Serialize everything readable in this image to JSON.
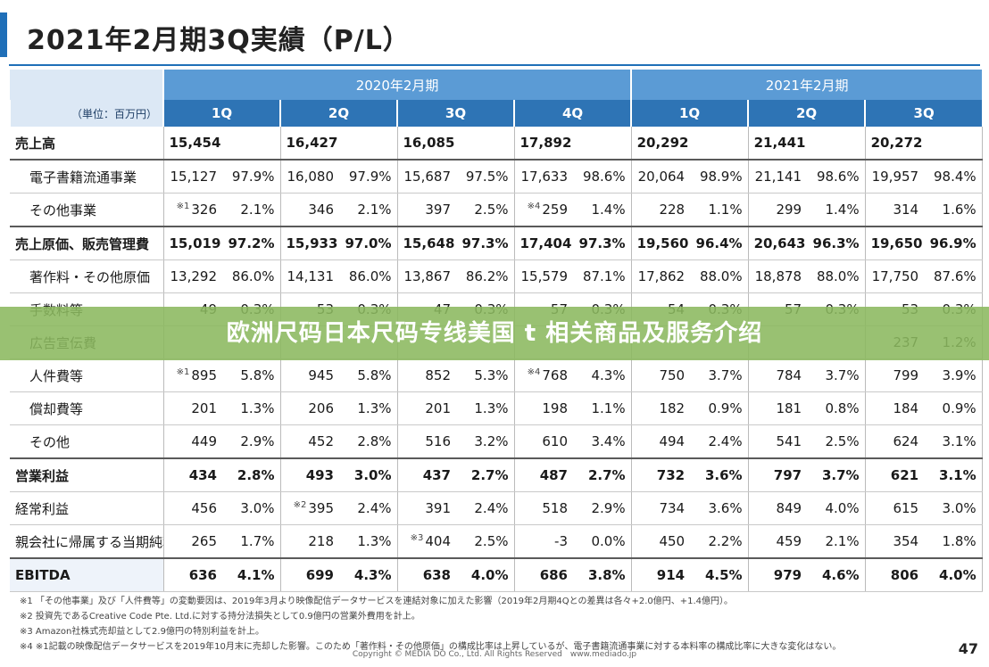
{
  "title": "2021年2月期3Q実績（P/L）",
  "header": {
    "unit": "（単位：百万円）",
    "periods": [
      "2020年2月期",
      "2021年2月期"
    ],
    "quarters": [
      "1Q",
      "2Q",
      "3Q",
      "4Q",
      "1Q",
      "2Q",
      "3Q"
    ]
  },
  "rows": [
    {
      "label": "売上高",
      "bold": true,
      "indent": false,
      "cells": [
        {
          "v": "15,454",
          "p": "",
          "n": ""
        },
        {
          "v": "16,427",
          "p": "",
          "n": ""
        },
        {
          "v": "16,085",
          "p": "",
          "n": ""
        },
        {
          "v": "17,892",
          "p": "",
          "n": ""
        },
        {
          "v": "20,292",
          "p": "",
          "n": ""
        },
        {
          "v": "21,441",
          "p": "",
          "n": ""
        },
        {
          "v": "20,272",
          "p": "",
          "n": ""
        }
      ]
    },
    {
      "label": "電子書籍流通事業",
      "bold": false,
      "indent": true,
      "cells": [
        {
          "v": "15,127",
          "p": "97.9%",
          "n": ""
        },
        {
          "v": "16,080",
          "p": "97.9%",
          "n": ""
        },
        {
          "v": "15,687",
          "p": "97.5%",
          "n": ""
        },
        {
          "v": "17,633",
          "p": "98.6%",
          "n": ""
        },
        {
          "v": "20,064",
          "p": "98.9%",
          "n": ""
        },
        {
          "v": "21,141",
          "p": "98.6%",
          "n": ""
        },
        {
          "v": "19,957",
          "p": "98.4%",
          "n": ""
        }
      ]
    },
    {
      "label": "その他事業",
      "bold": false,
      "indent": true,
      "cells": [
        {
          "v": "326",
          "p": "2.1%",
          "n": "※1"
        },
        {
          "v": "346",
          "p": "2.1%",
          "n": ""
        },
        {
          "v": "397",
          "p": "2.5%",
          "n": ""
        },
        {
          "v": "259",
          "p": "1.4%",
          "n": "※4"
        },
        {
          "v": "228",
          "p": "1.1%",
          "n": ""
        },
        {
          "v": "299",
          "p": "1.4%",
          "n": ""
        },
        {
          "v": "314",
          "p": "1.6%",
          "n": ""
        }
      ]
    },
    {
      "label": "売上原価、販売管理費",
      "bold": true,
      "indent": false,
      "cells": [
        {
          "v": "15,019",
          "p": "97.2%",
          "n": ""
        },
        {
          "v": "15,933",
          "p": "97.0%",
          "n": ""
        },
        {
          "v": "15,648",
          "p": "97.3%",
          "n": ""
        },
        {
          "v": "17,404",
          "p": "97.3%",
          "n": ""
        },
        {
          "v": "19,560",
          "p": "96.4%",
          "n": ""
        },
        {
          "v": "20,643",
          "p": "96.3%",
          "n": ""
        },
        {
          "v": "19,650",
          "p": "96.9%",
          "n": ""
        }
      ]
    },
    {
      "label": "著作料・その他原価",
      "bold": false,
      "indent": true,
      "cells": [
        {
          "v": "13,292",
          "p": "86.0%",
          "n": ""
        },
        {
          "v": "14,131",
          "p": "86.0%",
          "n": ""
        },
        {
          "v": "13,867",
          "p": "86.2%",
          "n": ""
        },
        {
          "v": "15,579",
          "p": "87.1%",
          "n": ""
        },
        {
          "v": "17,862",
          "p": "88.0%",
          "n": ""
        },
        {
          "v": "18,878",
          "p": "88.0%",
          "n": ""
        },
        {
          "v": "17,750",
          "p": "87.6%",
          "n": ""
        }
      ]
    },
    {
      "label": "手数料等",
      "bold": false,
      "indent": true,
      "cells": [
        {
          "v": "49",
          "p": "0.3%",
          "n": ""
        },
        {
          "v": "53",
          "p": "0.3%",
          "n": ""
        },
        {
          "v": "47",
          "p": "0.3%",
          "n": ""
        },
        {
          "v": "57",
          "p": "0.3%",
          "n": ""
        },
        {
          "v": "54",
          "p": "0.3%",
          "n": ""
        },
        {
          "v": "57",
          "p": "0.3%",
          "n": ""
        },
        {
          "v": "53",
          "p": "0.3%",
          "n": ""
        }
      ]
    },
    {
      "label": "広告宣伝費",
      "bold": false,
      "indent": true,
      "cells": [
        {
          "v": "",
          "p": "",
          "n": ""
        },
        {
          "v": "",
          "p": "",
          "n": ""
        },
        {
          "v": "",
          "p": "",
          "n": ""
        },
        {
          "v": "",
          "p": "",
          "n": ""
        },
        {
          "v": "",
          "p": "",
          "n": ""
        },
        {
          "v": "",
          "p": "",
          "n": ""
        },
        {
          "v": "237",
          "p": "1.2%",
          "n": ""
        }
      ]
    },
    {
      "label": "人件費等",
      "bold": false,
      "indent": true,
      "cells": [
        {
          "v": "895",
          "p": "5.8%",
          "n": "※1"
        },
        {
          "v": "945",
          "p": "5.8%",
          "n": ""
        },
        {
          "v": "852",
          "p": "5.3%",
          "n": ""
        },
        {
          "v": "768",
          "p": "4.3%",
          "n": "※4"
        },
        {
          "v": "750",
          "p": "3.7%",
          "n": ""
        },
        {
          "v": "784",
          "p": "3.7%",
          "n": ""
        },
        {
          "v": "799",
          "p": "3.9%",
          "n": ""
        }
      ]
    },
    {
      "label": "償却費等",
      "bold": false,
      "indent": true,
      "cells": [
        {
          "v": "201",
          "p": "1.3%",
          "n": ""
        },
        {
          "v": "206",
          "p": "1.3%",
          "n": ""
        },
        {
          "v": "201",
          "p": "1.3%",
          "n": ""
        },
        {
          "v": "198",
          "p": "1.1%",
          "n": ""
        },
        {
          "v": "182",
          "p": "0.9%",
          "n": ""
        },
        {
          "v": "181",
          "p": "0.8%",
          "n": ""
        },
        {
          "v": "184",
          "p": "0.9%",
          "n": ""
        }
      ]
    },
    {
      "label": "その他",
      "bold": false,
      "indent": true,
      "cells": [
        {
          "v": "449",
          "p": "2.9%",
          "n": ""
        },
        {
          "v": "452",
          "p": "2.8%",
          "n": ""
        },
        {
          "v": "516",
          "p": "3.2%",
          "n": ""
        },
        {
          "v": "610",
          "p": "3.4%",
          "n": ""
        },
        {
          "v": "494",
          "p": "2.4%",
          "n": ""
        },
        {
          "v": "541",
          "p": "2.5%",
          "n": ""
        },
        {
          "v": "624",
          "p": "3.1%",
          "n": ""
        }
      ]
    },
    {
      "label": "営業利益",
      "bold": true,
      "indent": false,
      "cells": [
        {
          "v": "434",
          "p": "2.8%",
          "n": ""
        },
        {
          "v": "493",
          "p": "3.0%",
          "n": ""
        },
        {
          "v": "437",
          "p": "2.7%",
          "n": ""
        },
        {
          "v": "487",
          "p": "2.7%",
          "n": ""
        },
        {
          "v": "732",
          "p": "3.6%",
          "n": ""
        },
        {
          "v": "797",
          "p": "3.7%",
          "n": ""
        },
        {
          "v": "621",
          "p": "3.1%",
          "n": ""
        }
      ]
    },
    {
      "label": "経常利益",
      "bold": false,
      "indent": false,
      "cells": [
        {
          "v": "456",
          "p": "3.0%",
          "n": ""
        },
        {
          "v": "395",
          "p": "2.4%",
          "n": "※2"
        },
        {
          "v": "391",
          "p": "2.4%",
          "n": ""
        },
        {
          "v": "518",
          "p": "2.9%",
          "n": ""
        },
        {
          "v": "734",
          "p": "3.6%",
          "n": ""
        },
        {
          "v": "849",
          "p": "4.0%",
          "n": ""
        },
        {
          "v": "615",
          "p": "3.0%",
          "n": ""
        }
      ]
    },
    {
      "label": "親会社に帰属する当期純利益",
      "bold": false,
      "indent": false,
      "cells": [
        {
          "v": "265",
          "p": "1.7%",
          "n": ""
        },
        {
          "v": "218",
          "p": "1.3%",
          "n": ""
        },
        {
          "v": "404",
          "p": "2.5%",
          "n": "※3"
        },
        {
          "v": "-3",
          "p": "0.0%",
          "n": ""
        },
        {
          "v": "450",
          "p": "2.2%",
          "n": ""
        },
        {
          "v": "459",
          "p": "2.1%",
          "n": ""
        },
        {
          "v": "354",
          "p": "1.8%",
          "n": ""
        }
      ]
    },
    {
      "label": "EBITDA",
      "bold": true,
      "indent": false,
      "cells": [
        {
          "v": "636",
          "p": "4.1%",
          "n": ""
        },
        {
          "v": "699",
          "p": "4.3%",
          "n": ""
        },
        {
          "v": "638",
          "p": "4.0%",
          "n": ""
        },
        {
          "v": "686",
          "p": "3.8%",
          "n": ""
        },
        {
          "v": "914",
          "p": "4.5%",
          "n": ""
        },
        {
          "v": "979",
          "p": "4.6%",
          "n": ""
        },
        {
          "v": "806",
          "p": "4.0%",
          "n": ""
        }
      ]
    }
  ],
  "banner": "欧洲尺码日本尺码专线美国 t 相关商品及服务介绍",
  "footnotes": [
    "※1 「その他事業」及び「人件費等」の変動要因は、2019年3月より映像配信データサービスを連結対象に加えた影響（2019年2月期4Qとの差異は各々+2.0億円、+1.4億円）。",
    "※2 投資先であるCreative Code Pte. Ltd.に対する持分法損失として0.9億円の営業外費用を計上。",
    "※3 Amazon社株式売却益として2.9億円の特別利益を計上。",
    "※4 ※1記載の映像配信データサービスを2019年10月末に売却した影響。このため「著作料・その他原価」の構成比率は上昇しているが、電子書籍流通事業に対する本料率の構成比率に大きな変化はない。"
  ],
  "copyright": "Copyright © MEDIA DO Co., Ltd. All Rights Reserved　www.mediado.jp",
  "page_number": "47"
}
